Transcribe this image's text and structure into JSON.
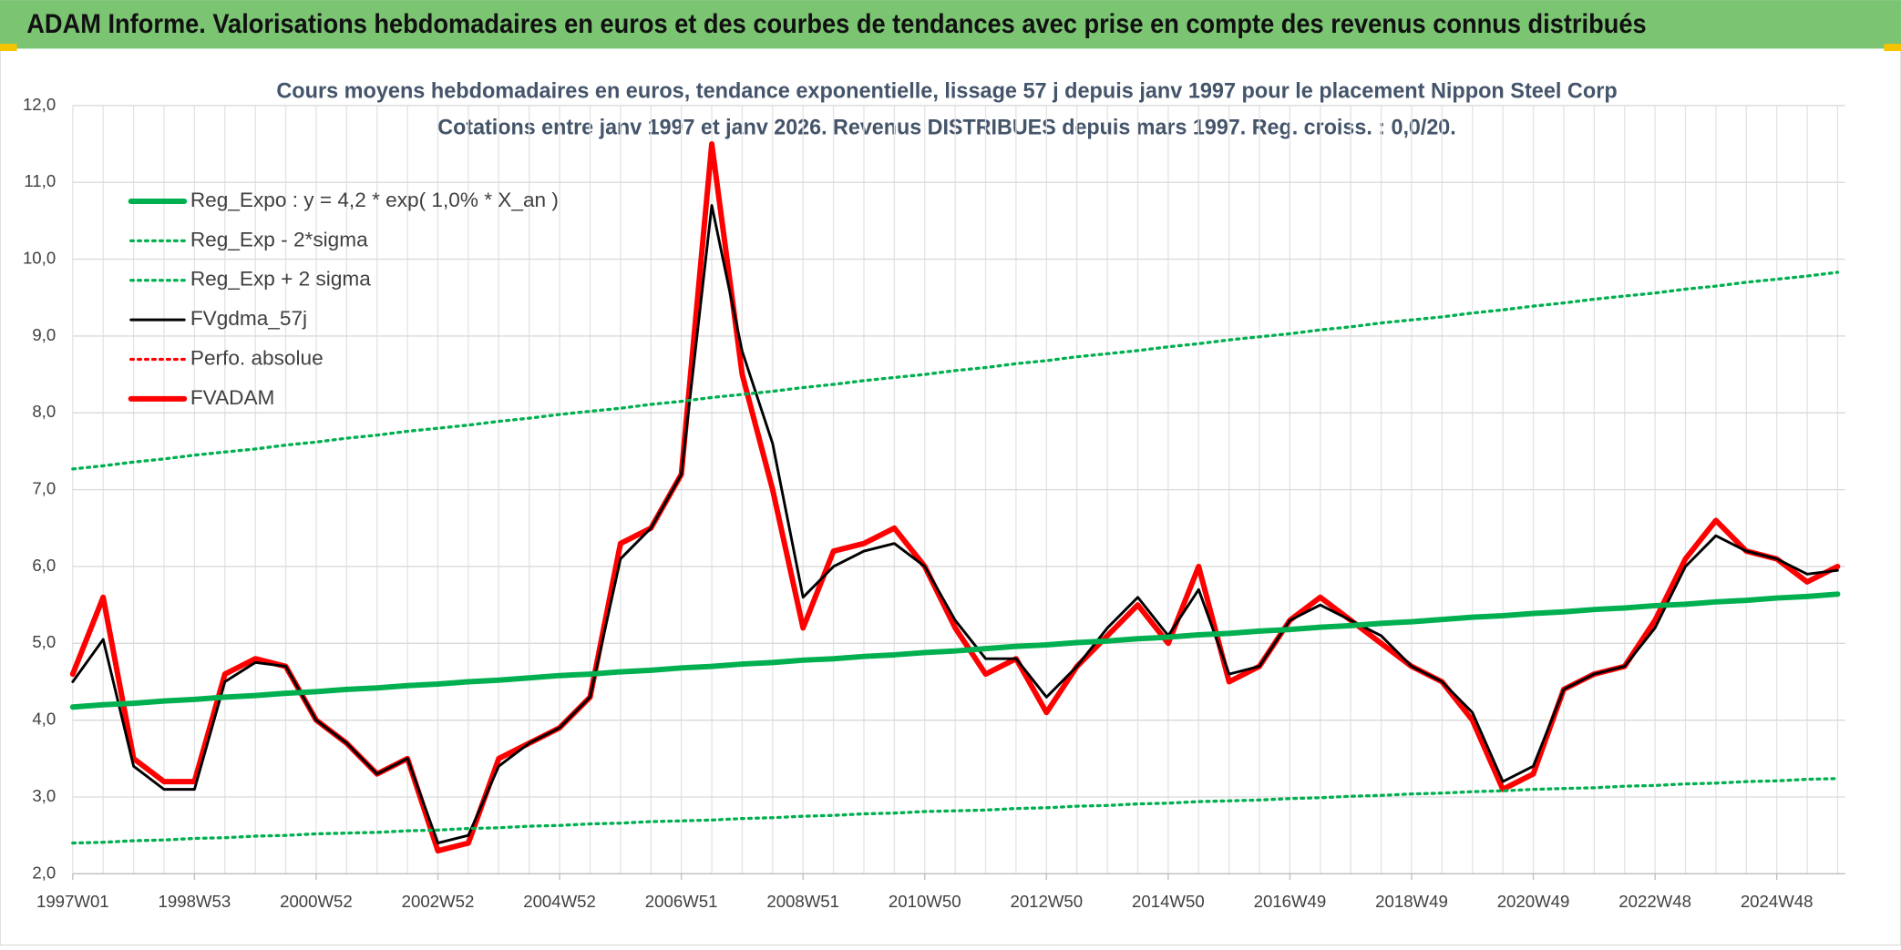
{
  "header": {
    "title": "ADAM Informe. Valorisations hebdomadaires en euros et des courbes de tendances avec prise en compte des revenus connus distribués"
  },
  "chart_data": {
    "type": "line",
    "title": "Cours moyens hebdomadaires en euros, tendance exponentielle, lissage 57 j depuis janv 1997 pour le placement Nippon Steel Corp",
    "subtitle": "Cotations entre janv 1997 et janv 2026. Revenus DISTRIBUES depuis mars 1997. Reg. croiss. : 0,0/20.",
    "categories": [
      "1997W01",
      null,
      null,
      null,
      "1998W53",
      null,
      null,
      null,
      "2000W52",
      null,
      null,
      null,
      "2002W52",
      null,
      null,
      null,
      "2004W52",
      null,
      null,
      null,
      "2006W51",
      null,
      null,
      null,
      "2008W51",
      null,
      null,
      null,
      "2010W50",
      null,
      null,
      null,
      "2012W50",
      null,
      null,
      null,
      "2014W50",
      null,
      null,
      null,
      "2016W49",
      null,
      null,
      null,
      "2018W49",
      null,
      null,
      null,
      "2020W49",
      null,
      null,
      null,
      "2022W48",
      null,
      null,
      null,
      "2024W48",
      null,
      null
    ],
    "ylim": [
      2,
      12
    ],
    "yticks": [
      {
        "value": 2,
        "label": "2,0"
      },
      {
        "value": 3,
        "label": "3,0"
      },
      {
        "value": 4,
        "label": "4,0"
      },
      {
        "value": 5,
        "label": "5,0"
      },
      {
        "value": 6,
        "label": "6,0"
      },
      {
        "value": 7,
        "label": "7,0"
      },
      {
        "value": 8,
        "label": "8,0"
      },
      {
        "value": 9,
        "label": "9,0"
      },
      {
        "value": 10,
        "label": "10,0"
      },
      {
        "value": 11,
        "label": "11,0"
      },
      {
        "value": 12,
        "label": "12,0"
      }
    ],
    "grid": true,
    "legend": "top-left",
    "series": [
      {
        "name": "Reg_Expo : y = 4,2 * exp( 1,0% *  X_an )",
        "color": "#00b050",
        "line_style": "thick",
        "values": [
          4.17,
          4.2,
          4.22,
          4.25,
          4.27,
          4.3,
          4.32,
          4.35,
          4.37,
          4.4,
          4.42,
          4.45,
          4.47,
          4.5,
          4.52,
          4.55,
          4.58,
          4.6,
          4.63,
          4.65,
          4.68,
          4.7,
          4.73,
          4.75,
          4.78,
          4.8,
          4.83,
          4.85,
          4.88,
          4.9,
          4.93,
          4.96,
          4.98,
          5.01,
          5.03,
          5.06,
          5.08,
          5.11,
          5.13,
          5.16,
          5.18,
          5.21,
          5.23,
          5.26,
          5.28,
          5.31,
          5.34,
          5.36,
          5.39,
          5.41,
          5.44,
          5.46,
          5.49,
          5.51,
          5.54,
          5.56,
          5.59,
          5.61,
          5.64
        ]
      },
      {
        "name": "Reg_Exp - 2*sigma",
        "color": "#00b050",
        "line_style": "dotted",
        "values": [
          2.4,
          2.41,
          2.43,
          2.44,
          2.46,
          2.47,
          2.49,
          2.5,
          2.52,
          2.53,
          2.54,
          2.56,
          2.57,
          2.59,
          2.6,
          2.62,
          2.63,
          2.65,
          2.66,
          2.68,
          2.69,
          2.7,
          2.72,
          2.73,
          2.75,
          2.76,
          2.78,
          2.79,
          2.81,
          2.82,
          2.83,
          2.85,
          2.86,
          2.88,
          2.89,
          2.91,
          2.92,
          2.94,
          2.95,
          2.96,
          2.98,
          2.99,
          3.01,
          3.02,
          3.04,
          3.05,
          3.07,
          3.08,
          3.1,
          3.11,
          3.12,
          3.14,
          3.15,
          3.17,
          3.18,
          3.2,
          3.21,
          3.23,
          3.24
        ]
      },
      {
        "name": "Reg_Exp + 2 sigma",
        "color": "#00b050",
        "line_style": "dotted",
        "values": [
          7.27,
          7.31,
          7.36,
          7.4,
          7.45,
          7.49,
          7.53,
          7.58,
          7.62,
          7.67,
          7.71,
          7.76,
          7.8,
          7.84,
          7.89,
          7.93,
          7.98,
          8.02,
          8.06,
          8.11,
          8.15,
          8.2,
          8.24,
          8.28,
          8.33,
          8.37,
          8.42,
          8.46,
          8.5,
          8.55,
          8.59,
          8.64,
          8.68,
          8.73,
          8.77,
          8.81,
          8.86,
          8.9,
          8.95,
          8.99,
          9.03,
          9.08,
          9.12,
          9.17,
          9.21,
          9.25,
          9.3,
          9.34,
          9.39,
          9.43,
          9.48,
          9.52,
          9.56,
          9.61,
          9.65,
          9.7,
          9.74,
          9.78,
          9.83
        ]
      },
      {
        "name": "FVgdma_57j",
        "color": "#000000",
        "line_style": "solid",
        "values": [
          4.5,
          5.05,
          3.4,
          3.1,
          3.1,
          4.5,
          4.75,
          4.7,
          4.0,
          3.7,
          3.3,
          3.5,
          2.4,
          2.5,
          3.4,
          3.7,
          3.9,
          4.3,
          6.1,
          6.5,
          7.2,
          10.7,
          8.8,
          7.6,
          5.6,
          6.0,
          6.2,
          6.3,
          6.0,
          5.3,
          4.8,
          4.8,
          4.3,
          4.7,
          5.2,
          5.6,
          5.1,
          5.7,
          4.6,
          4.7,
          5.3,
          5.5,
          5.3,
          5.1,
          4.7,
          4.5,
          4.1,
          3.2,
          3.4,
          4.4,
          4.6,
          4.7,
          5.2,
          6.0,
          6.4,
          6.2,
          6.1,
          5.9,
          5.95
        ]
      },
      {
        "name": "Perfo. absolue",
        "color": "#ff0000",
        "line_style": "dotted",
        "values": [
          null,
          null,
          null,
          null,
          null,
          null,
          null,
          null,
          null,
          null,
          null,
          null,
          null,
          null,
          null,
          null,
          null,
          null,
          null,
          null,
          null,
          null,
          null,
          null,
          null,
          null,
          null,
          null,
          null,
          null,
          null,
          null,
          null,
          null,
          null,
          null,
          null,
          null,
          null,
          null,
          null,
          null,
          null,
          null,
          null,
          null,
          null,
          null,
          null,
          null,
          null,
          null,
          null,
          null,
          null,
          null,
          null,
          null,
          null
        ]
      },
      {
        "name": "FVADAM",
        "color": "#ff0000",
        "line_style": "thick",
        "values": [
          4.6,
          5.6,
          3.5,
          3.2,
          3.2,
          4.6,
          4.8,
          4.7,
          4.0,
          3.7,
          3.3,
          3.5,
          2.3,
          2.4,
          3.5,
          3.7,
          3.9,
          4.3,
          6.3,
          6.5,
          7.2,
          11.5,
          8.5,
          7.0,
          5.2,
          6.2,
          6.3,
          6.5,
          6.0,
          5.2,
          4.6,
          4.8,
          4.1,
          4.7,
          5.1,
          5.5,
          5.0,
          6.0,
          4.5,
          4.7,
          5.3,
          5.6,
          5.3,
          5.0,
          4.7,
          4.5,
          4.0,
          3.1,
          3.3,
          4.4,
          4.6,
          4.7,
          5.3,
          6.1,
          6.6,
          6.2,
          6.1,
          5.8,
          6.0
        ]
      }
    ]
  }
}
